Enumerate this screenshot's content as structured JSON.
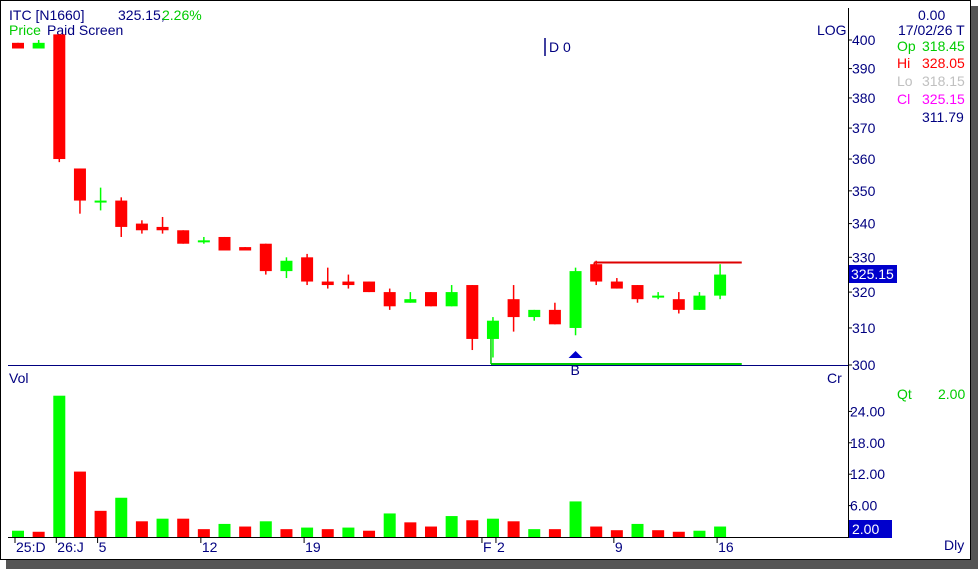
{
  "header": {
    "symbol": "ITC [N1660]",
    "price": "325.15,",
    "change": "2.26%",
    "price_label": "Price",
    "screen_label": "Paid Screen",
    "draw_marker": "D 0",
    "scale_label": "LOG"
  },
  "info_panel": {
    "top_value": "0.00",
    "date": "17/02/26 T",
    "open_label": "Op",
    "open_value": "318.45",
    "high_label": "Hi",
    "high_value": "328.05",
    "low_label": "Lo",
    "low_value": "318.15",
    "close_label": "Cl",
    "close_value": "325.15",
    "extra_value": "311.79"
  },
  "price_tag": "325.15",
  "signal_label": "B",
  "volume_panel": {
    "label": "Vol",
    "unit_label": "Cr",
    "qty_label": "Qt",
    "qty_value": "2.00",
    "vol_tag": "2.00"
  },
  "period_label": "Dly",
  "colors": {
    "up": "#00ff00",
    "down": "#ff0000",
    "axis_text": "#000080",
    "green_text": "#00cc00",
    "high_text": "#ff0000",
    "low_text": "#c0c0c0",
    "close_text": "#ff00ff",
    "tag_bg": "#0000cc",
    "resistance": "#dd0000",
    "support": "#00cc00"
  },
  "chart_data": [
    {
      "type": "candlestick",
      "scale": "log",
      "ylim": [
        300,
        400
      ],
      "yticks": [
        400,
        390,
        380,
        370,
        360,
        350,
        340,
        330,
        320,
        310,
        300
      ],
      "x_labels": [
        "25:D",
        "26:J",
        "5",
        "12",
        "19",
        "F",
        "2",
        "9",
        "16"
      ],
      "candles": [
        {
          "o": 399,
          "h": 399,
          "l": 397,
          "c": 397
        },
        {
          "o": 397,
          "h": 400,
          "l": 397,
          "c": 399
        },
        {
          "o": 402,
          "h": 402,
          "l": 359,
          "c": 360
        },
        {
          "o": 357,
          "h": 357,
          "l": 343,
          "c": 347
        },
        {
          "o": 347,
          "h": 351,
          "l": 344,
          "c": 347
        },
        {
          "o": 347,
          "h": 348,
          "l": 336,
          "c": 339
        },
        {
          "o": 340,
          "h": 341,
          "l": 337,
          "c": 338
        },
        {
          "o": 339,
          "h": 342,
          "l": 337,
          "c": 338
        },
        {
          "o": 338,
          "h": 338,
          "l": 334,
          "c": 334
        },
        {
          "o": 335,
          "h": 336,
          "l": 334,
          "c": 335
        },
        {
          "o": 336,
          "h": 336,
          "l": 332,
          "c": 332
        },
        {
          "o": 333,
          "h": 333,
          "l": 332,
          "c": 332
        },
        {
          "o": 334,
          "h": 334,
          "l": 325,
          "c": 326
        },
        {
          "o": 326,
          "h": 330,
          "l": 324,
          "c": 329
        },
        {
          "o": 330,
          "h": 331,
          "l": 322,
          "c": 323
        },
        {
          "o": 323,
          "h": 327,
          "l": 321,
          "c": 322
        },
        {
          "o": 323,
          "h": 325,
          "l": 321,
          "c": 322
        },
        {
          "o": 323,
          "h": 323,
          "l": 320,
          "c": 320
        },
        {
          "o": 320,
          "h": 321,
          "l": 315,
          "c": 316
        },
        {
          "o": 317,
          "h": 320,
          "l": 317,
          "c": 318
        },
        {
          "o": 320,
          "h": 320,
          "l": 316,
          "c": 316
        },
        {
          "o": 316,
          "h": 322,
          "l": 316,
          "c": 320
        },
        {
          "o": 322,
          "h": 322,
          "l": 304,
          "c": 307
        },
        {
          "o": 307,
          "h": 313,
          "l": 302,
          "c": 312
        },
        {
          "o": 318,
          "h": 322,
          "l": 309,
          "c": 313
        },
        {
          "o": 313,
          "h": 315,
          "l": 312,
          "c": 315
        },
        {
          "o": 315,
          "h": 317,
          "l": 311,
          "c": 311
        },
        {
          "o": 310,
          "h": 327,
          "l": 308,
          "c": 326
        },
        {
          "o": 328,
          "h": 329,
          "l": 322,
          "c": 323
        },
        {
          "o": 323,
          "h": 324,
          "l": 321,
          "c": 321
        },
        {
          "o": 322,
          "h": 322,
          "l": 317,
          "c": 318
        },
        {
          "o": 319,
          "h": 320,
          "l": 318,
          "c": 319
        },
        {
          "o": 318,
          "h": 320,
          "l": 314,
          "c": 315
        },
        {
          "o": 315,
          "h": 320,
          "l": 315,
          "c": 319
        },
        {
          "o": 319,
          "h": 328,
          "l": 318,
          "c": 325
        }
      ],
      "resistance_level": 328.5,
      "support_level": 300
    },
    {
      "type": "bar",
      "ylim": [
        0,
        30
      ],
      "yticks": [
        "24.00",
        "18.00",
        "12.00",
        "6.00"
      ],
      "values": [
        1.2,
        1.0,
        27,
        12.5,
        5,
        7.5,
        3,
        3.5,
        3.5,
        1.5,
        2.5,
        2,
        3,
        1.5,
        1.8,
        1.5,
        1.8,
        1.2,
        4.5,
        2.8,
        2,
        4,
        3.2,
        3.5,
        3,
        1.5,
        1.5,
        6.8,
        2,
        1.3,
        2.5,
        1.3,
        1.0,
        1.2,
        2.0
      ],
      "directions": [
        "up",
        "down",
        "up",
        "down",
        "down",
        "up",
        "down",
        "up",
        "down",
        "down",
        "up",
        "down",
        "up",
        "down",
        "up",
        "down",
        "up",
        "down",
        "up",
        "down",
        "down",
        "up",
        "down",
        "up",
        "down",
        "up",
        "down",
        "up",
        "down",
        "down",
        "up",
        "down",
        "down",
        "up",
        "up"
      ]
    }
  ]
}
